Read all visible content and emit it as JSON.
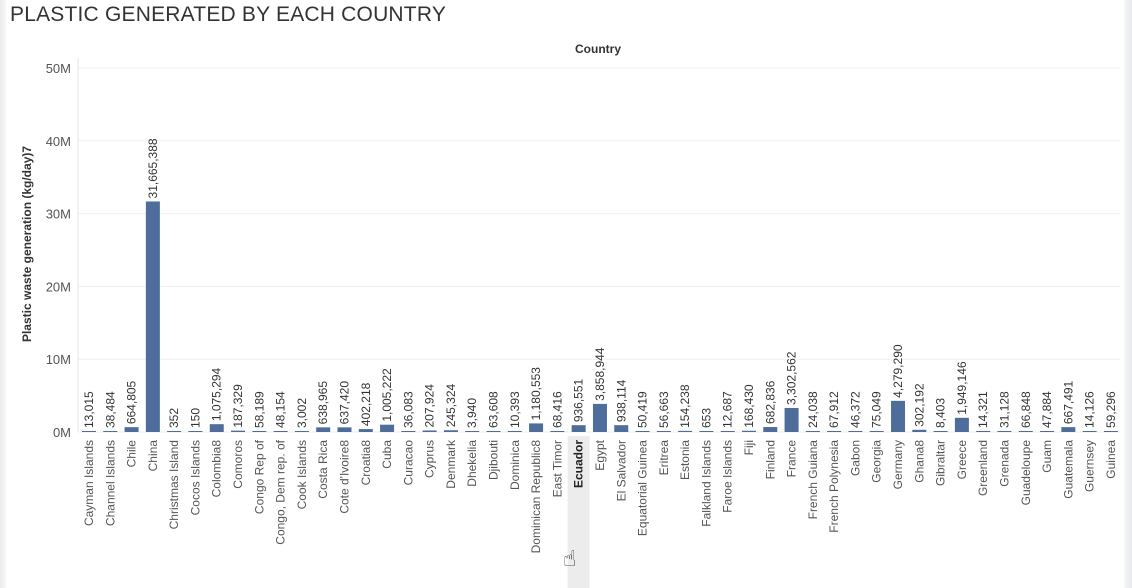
{
  "page": {
    "title": "PLASTIC GENERATED BY EACH COUNTRY",
    "cursor_icon": "hand-pointer-icon"
  },
  "chart_data": {
    "type": "bar",
    "title": "PLASTIC GENERATED BY EACH COUNTRY",
    "column_header": "Country",
    "xlabel": "",
    "ylabel": "Plastic waste generation (kg/day)7",
    "ylim": [
      0,
      50000000
    ],
    "yticks": [
      0,
      10000000,
      20000000,
      30000000,
      40000000,
      50000000
    ],
    "ytick_labels": [
      "0M",
      "10M",
      "20M",
      "30M",
      "40M",
      "50M"
    ],
    "grid": true,
    "highlighted_category": "Ecuador",
    "bar_color": "#4e6d9b",
    "categories": [
      "Cayman Islands",
      "Channel Islands",
      "Chile",
      "China",
      "Christmas Island",
      "Cocos Islands",
      "Colombia8",
      "Comoros",
      "Congo Rep of",
      "Congo, Dem rep. of",
      "Cook Islands",
      "Costa Rica",
      "Cote d'Ivoire8",
      "Croatia8",
      "Cuba",
      "Curacao",
      "Cyprus",
      "Denmark",
      "Dhekelia",
      "Djibouti",
      "Dominica",
      "Dominican Republic8",
      "East Timor",
      "Ecuador",
      "Egypt",
      "El Salvador",
      "Equatorial Guinea",
      "Eritrea",
      "Estonia",
      "Falkland Islands",
      "Faroe Islands",
      "Fiji",
      "Finland",
      "France",
      "French Guiana",
      "French Polynesia",
      "Gabon",
      "Georgia",
      "Germany",
      "Ghana8",
      "Gibraltar",
      "Greece",
      "Greenland",
      "Grenada",
      "Guadeloupe",
      "Guam",
      "Guatemala",
      "Guernsey",
      "Guinea"
    ],
    "values": [
      13015,
      38484,
      664805,
      31665388,
      352,
      150,
      1075294,
      187329,
      58189,
      48154,
      3002,
      638965,
      637420,
      402218,
      1005222,
      36083,
      207924,
      245324,
      3940,
      63608,
      10393,
      1180553,
      68416,
      936551,
      3858944,
      938114,
      50419,
      56663,
      154238,
      653,
      12687,
      168430,
      682836,
      3302562,
      24038,
      67912,
      46372,
      75049,
      4279290,
      302192,
      8403,
      1949146,
      14321,
      31128,
      66848,
      47884,
      667491,
      14126,
      59296
    ],
    "value_labels": [
      "13,015",
      "38,484",
      "664,805",
      "31,665,388",
      "352",
      "150",
      "1,075,294",
      "187,329",
      "58,189",
      "48,154",
      "3,002",
      "638,965",
      "637,420",
      "402,218",
      "1,005,222",
      "36,083",
      "207,924",
      "245,324",
      "3,940",
      "63,608",
      "10,393",
      "1,180,553",
      "68,416",
      "936,551",
      "3,858,944",
      "938,114",
      "50,419",
      "56,663",
      "154,238",
      "653",
      "12,687",
      "168,430",
      "682,836",
      "3,302,562",
      "24,038",
      "67,912",
      "46,372",
      "75,049",
      "4,279,290",
      "302,192",
      "8,403",
      "1,949,146",
      "14,321",
      "31,128",
      "66,848",
      "47,884",
      "667,491",
      "14,126",
      "59,296"
    ]
  }
}
